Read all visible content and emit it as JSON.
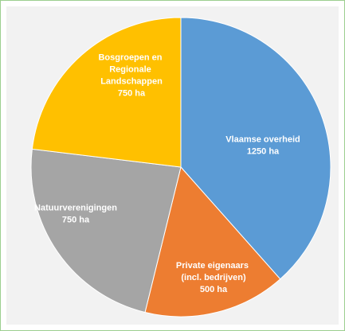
{
  "chart_data": {
    "type": "pie",
    "categories": [
      "Vlaamse overheid",
      "Private eigenaars (incl. bedrijven)",
      "Natuurverenigingen",
      "Bosgroepen en Regionale Landschappen"
    ],
    "values": [
      1250,
      500,
      750,
      750
    ],
    "value_labels": [
      "1250 ha",
      "500 ha",
      "750 ha",
      "750 ha"
    ],
    "colors": [
      "#5b9bd5",
      "#ed7d31",
      "#a5a5a5",
      "#ffc000"
    ]
  }
}
